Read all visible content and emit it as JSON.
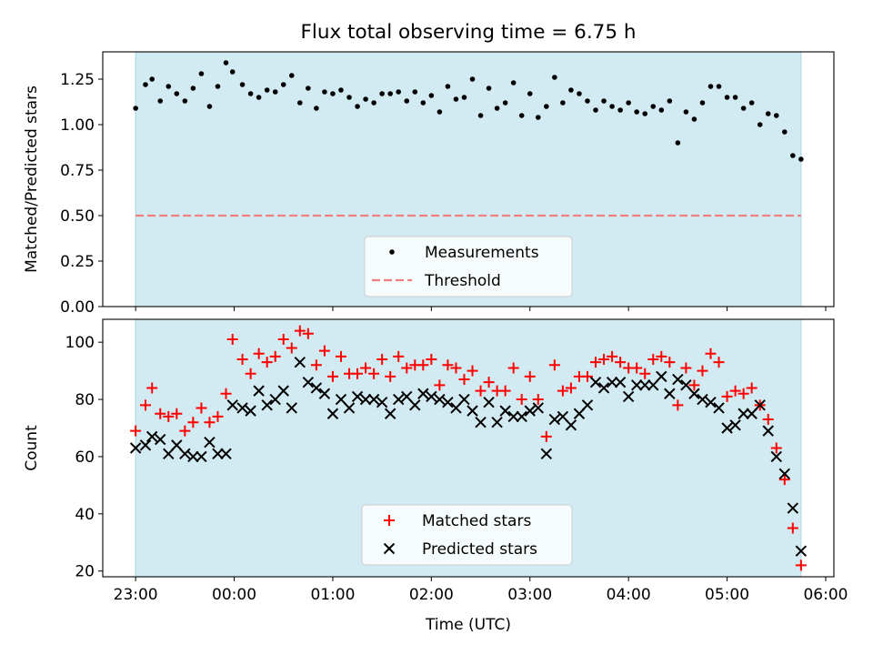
{
  "figure": {
    "title": "Flux total observing time = 6.75 h"
  },
  "chart_data": [
    {
      "type": "scatter",
      "ylabel": "Matched/Predicted stars",
      "xlabel": "",
      "xlim": [
        "22:40",
        "06:05"
      ],
      "ylim": [
        0.0,
        1.4
      ],
      "x_ticks": [
        "23:00",
        "00:00",
        "01:00",
        "02:00",
        "03:00",
        "04:00",
        "05:00",
        "06:00"
      ],
      "y_ticks": [
        "0.00",
        "0.25",
        "0.50",
        "0.75",
        "1.00",
        "1.25"
      ],
      "grid": false,
      "legend_position": "lower-center",
      "shaded_span": {
        "start": "23:00",
        "end": "05:45",
        "color": "#add8e6"
      },
      "threshold": {
        "name": "Threshold",
        "value": 0.5,
        "color": "#f08080",
        "style": "dashed"
      },
      "series": [
        {
          "name": "Measurements",
          "marker": "dot",
          "color": "#000000",
          "x": [
            "23:00",
            "23:06",
            "23:10",
            "23:15",
            "23:20",
            "23:25",
            "23:30",
            "23:35",
            "23:40",
            "23:45",
            "23:50",
            "23:55",
            "23:59",
            "00:05",
            "00:10",
            "00:15",
            "00:20",
            "00:25",
            "00:30",
            "00:35",
            "00:40",
            "00:45",
            "00:50",
            "00:55",
            "01:00",
            "01:05",
            "01:10",
            "01:15",
            "01:20",
            "01:25",
            "01:30",
            "01:35",
            "01:40",
            "01:45",
            "01:50",
            "01:55",
            "02:00",
            "02:05",
            "02:10",
            "02:15",
            "02:20",
            "02:25",
            "02:30",
            "02:35",
            "02:40",
            "02:45",
            "02:50",
            "02:55",
            "03:00",
            "03:05",
            "03:10",
            "03:15",
            "03:20",
            "03:25",
            "03:30",
            "03:35",
            "03:40",
            "03:45",
            "03:50",
            "03:55",
            "04:00",
            "04:05",
            "04:10",
            "04:15",
            "04:20",
            "04:25",
            "04:30",
            "04:35",
            "04:40",
            "04:45",
            "04:50",
            "04:55",
            "05:00",
            "05:05",
            "05:10",
            "05:15",
            "05:20",
            "05:25",
            "05:30",
            "05:35",
            "05:40",
            "05:45"
          ],
          "y": [
            1.09,
            1.22,
            1.25,
            1.13,
            1.21,
            1.17,
            1.13,
            1.2,
            1.28,
            1.1,
            1.21,
            1.34,
            1.29,
            1.22,
            1.17,
            1.15,
            1.19,
            1.18,
            1.22,
            1.27,
            1.12,
            1.2,
            1.09,
            1.18,
            1.17,
            1.19,
            1.15,
            1.1,
            1.14,
            1.12,
            1.17,
            1.17,
            1.18,
            1.13,
            1.18,
            1.12,
            1.16,
            1.07,
            1.21,
            1.14,
            1.15,
            1.25,
            1.05,
            1.2,
            1.09,
            1.12,
            1.23,
            1.05,
            1.17,
            1.04,
            1.1,
            1.26,
            1.12,
            1.19,
            1.17,
            1.13,
            1.08,
            1.13,
            1.1,
            1.08,
            1.12,
            1.07,
            1.06,
            1.1,
            1.08,
            1.13,
            0.9,
            1.07,
            1.03,
            1.12,
            1.21,
            1.21,
            1.15,
            1.15,
            1.09,
            1.12,
            1.0,
            1.06,
            1.05,
            0.96,
            0.83,
            0.81
          ]
        }
      ]
    },
    {
      "type": "scatter",
      "ylabel": "Count",
      "xlabel": "Time (UTC)",
      "xlim": [
        "22:40",
        "06:05"
      ],
      "ylim": [
        18,
        108
      ],
      "x_ticks": [
        "23:00",
        "00:00",
        "01:00",
        "02:00",
        "03:00",
        "04:00",
        "05:00",
        "06:00"
      ],
      "y_ticks": [
        "20",
        "40",
        "60",
        "80",
        "100"
      ],
      "grid": false,
      "legend_position": "lower-center",
      "shaded_span": {
        "start": "23:00",
        "end": "05:45",
        "color": "#add8e6"
      },
      "series": [
        {
          "name": "Matched stars",
          "marker": "plus",
          "color": "#ff0000",
          "x": [
            "23:00",
            "23:06",
            "23:10",
            "23:15",
            "23:20",
            "23:25",
            "23:30",
            "23:35",
            "23:40",
            "23:45",
            "23:50",
            "23:55",
            "23:59",
            "00:05",
            "00:10",
            "00:15",
            "00:20",
            "00:25",
            "00:30",
            "00:35",
            "00:40",
            "00:45",
            "00:50",
            "00:55",
            "01:00",
            "01:05",
            "01:10",
            "01:15",
            "01:20",
            "01:25",
            "01:30",
            "01:35",
            "01:40",
            "01:45",
            "01:50",
            "01:55",
            "02:00",
            "02:05",
            "02:10",
            "02:15",
            "02:20",
            "02:25",
            "02:30",
            "02:35",
            "02:40",
            "02:45",
            "02:50",
            "02:55",
            "03:00",
            "03:05",
            "03:10",
            "03:15",
            "03:20",
            "03:25",
            "03:30",
            "03:35",
            "03:40",
            "03:45",
            "03:50",
            "03:55",
            "04:00",
            "04:05",
            "04:10",
            "04:15",
            "04:20",
            "04:25",
            "04:30",
            "04:35",
            "04:40",
            "04:45",
            "04:50",
            "04:55",
            "05:00",
            "05:05",
            "05:10",
            "05:15",
            "05:20",
            "05:25",
            "05:30",
            "05:35",
            "05:40",
            "05:45"
          ],
          "y": [
            69,
            78,
            84,
            75,
            74,
            75,
            69,
            72,
            77,
            72,
            74,
            82,
            101,
            94,
            89,
            96,
            93,
            95,
            101,
            98,
            104,
            103,
            92,
            97,
            88,
            95,
            89,
            89,
            91,
            89,
            94,
            88,
            95,
            91,
            92,
            92,
            94,
            85,
            92,
            91,
            87,
            90,
            83,
            86,
            83,
            83,
            91,
            80,
            88,
            80,
            67,
            92,
            83,
            84,
            88,
            88,
            93,
            94,
            95,
            93,
            91,
            91,
            89,
            94,
            95,
            93,
            78,
            91,
            85,
            90,
            96,
            93,
            81,
            83,
            82,
            84,
            78,
            73,
            63,
            52,
            35,
            22
          ]
        },
        {
          "name": "Predicted stars",
          "marker": "x",
          "color": "#000000",
          "x": [
            "23:00",
            "23:06",
            "23:10",
            "23:15",
            "23:20",
            "23:25",
            "23:30",
            "23:35",
            "23:40",
            "23:45",
            "23:50",
            "23:55",
            "23:59",
            "00:05",
            "00:10",
            "00:15",
            "00:20",
            "00:25",
            "00:30",
            "00:35",
            "00:40",
            "00:45",
            "00:50",
            "00:55",
            "01:00",
            "01:05",
            "01:10",
            "01:15",
            "01:20",
            "01:25",
            "01:30",
            "01:35",
            "01:40",
            "01:45",
            "01:50",
            "01:55",
            "02:00",
            "02:05",
            "02:10",
            "02:15",
            "02:20",
            "02:25",
            "02:30",
            "02:35",
            "02:40",
            "02:45",
            "02:50",
            "02:55",
            "03:00",
            "03:05",
            "03:10",
            "03:15",
            "03:20",
            "03:25",
            "03:30",
            "03:35",
            "03:40",
            "03:45",
            "03:50",
            "03:55",
            "04:00",
            "04:05",
            "04:10",
            "04:15",
            "04:20",
            "04:25",
            "04:30",
            "04:35",
            "04:40",
            "04:45",
            "04:50",
            "04:55",
            "05:00",
            "05:05",
            "05:10",
            "05:15",
            "05:20",
            "05:25",
            "05:30",
            "05:35",
            "05:40",
            "05:45"
          ],
          "y": [
            63,
            64,
            67,
            66,
            61,
            64,
            61,
            60,
            60,
            65,
            61,
            61,
            78,
            77,
            76,
            83,
            78,
            80,
            83,
            77,
            93,
            86,
            84,
            82,
            75,
            80,
            77,
            81,
            80,
            80,
            79,
            75,
            80,
            81,
            78,
            82,
            81,
            80,
            79,
            77,
            80,
            76,
            72,
            79,
            72,
            76,
            74,
            74,
            76,
            77,
            61,
            73,
            74,
            71,
            75,
            78,
            86,
            84,
            86,
            86,
            81,
            85,
            85,
            85,
            88,
            82,
            87,
            85,
            82,
            80,
            79,
            77,
            70,
            71,
            75,
            75,
            78,
            69,
            60,
            54,
            42,
            27
          ]
        }
      ]
    }
  ]
}
